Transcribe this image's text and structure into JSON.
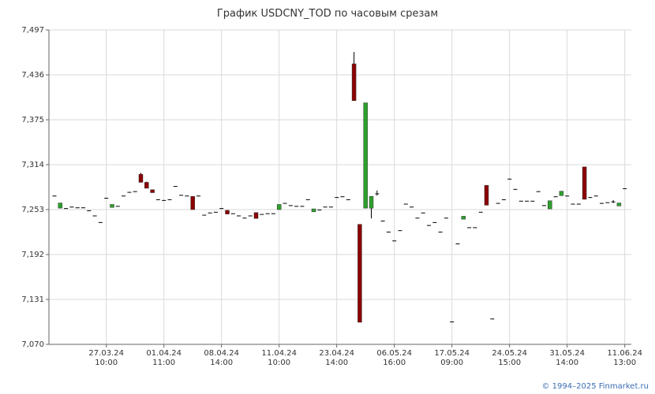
{
  "chart_data": {
    "type": "candlestick",
    "title": "График USDCNY_TOD по часовым срезам",
    "footer": "© 1994–2025 Finmarket.ru",
    "up_color": "#2ca02c",
    "down_color": "#8b0000",
    "flat_color": "#000000",
    "grid": true,
    "ylim": [
      7.07,
      7.497
    ],
    "yticks": [
      {
        "value": 7.07,
        "label": "7,070"
      },
      {
        "value": 7.131,
        "label": "7,131"
      },
      {
        "value": 7.192,
        "label": "7,192"
      },
      {
        "value": 7.253,
        "label": "7,253"
      },
      {
        "value": 7.314,
        "label": "7,314"
      },
      {
        "value": 7.375,
        "label": "7,375"
      },
      {
        "value": 7.436,
        "label": "7,436"
      },
      {
        "value": 7.497,
        "label": "7,497"
      }
    ],
    "categories": [
      null,
      null,
      null,
      null,
      null,
      null,
      null,
      null,
      null,
      "27.03.24\n10:00",
      null,
      null,
      null,
      null,
      null,
      null,
      null,
      null,
      null,
      "01.04.24\n11:00",
      null,
      null,
      null,
      null,
      null,
      null,
      null,
      null,
      null,
      "08.04.24\n14:00",
      null,
      null,
      null,
      null,
      null,
      null,
      null,
      null,
      null,
      "11.04.24\n10:00",
      null,
      null,
      null,
      null,
      null,
      null,
      null,
      null,
      null,
      "23.04.24\n14:00",
      null,
      null,
      null,
      null,
      null,
      null,
      null,
      null,
      null,
      "06.05.24\n16:00",
      null,
      null,
      null,
      null,
      null,
      null,
      null,
      null,
      null,
      "17.05.24\n09:00",
      null,
      null,
      null,
      null,
      null,
      null,
      null,
      null,
      null,
      "24.05.24\n15:00",
      null,
      null,
      null,
      null,
      null,
      null,
      null,
      null,
      null,
      "31.05.24\n14:00",
      null,
      null,
      null,
      null,
      null,
      null,
      null,
      null,
      null,
      "11.06.24\n13:00"
    ],
    "open": [
      7.272,
      7.255,
      7.255,
      7.257,
      7.256,
      7.256,
      7.252,
      7.245,
      7.236,
      7.269,
      7.256,
      7.258,
      7.272,
      7.277,
      7.278,
      7.301,
      7.29,
      7.28,
      7.267,
      7.266,
      7.267,
      7.285,
      7.273,
      7.272,
      7.271,
      7.272,
      7.246,
      7.249,
      7.25,
      7.255,
      7.252,
      7.248,
      7.245,
      7.242,
      7.245,
      7.249,
      7.247,
      7.248,
      7.248,
      7.253,
      7.262,
      7.259,
      7.258,
      7.258,
      7.267,
      7.25,
      7.253,
      7.257,
      7.257,
      7.27,
      7.271,
      7.267,
      7.451,
      7.233,
      7.255,
      7.255,
      7.275,
      7.238,
      7.223,
      7.211,
      7.225,
      7.261,
      7.257,
      7.242,
      7.249,
      7.232,
      7.236,
      7.223,
      7.242,
      7.101,
      7.207,
      7.24,
      7.229,
      7.229,
      7.25,
      7.286,
      7.105,
      7.262,
      7.267,
      7.295,
      7.281,
      7.265,
      7.265,
      7.265,
      7.278,
      7.259,
      7.254,
      7.271,
      7.272,
      7.272,
      7.261,
      7.261,
      7.311,
      7.27,
      7.272,
      7.262,
      7.263,
      7.264,
      7.258,
      7.282
    ],
    "high": [
      7.272,
      7.262,
      7.255,
      7.257,
      7.256,
      7.256,
      7.252,
      7.245,
      7.236,
      7.269,
      7.26,
      7.258,
      7.272,
      7.277,
      7.278,
      7.303,
      7.291,
      7.28,
      7.267,
      7.266,
      7.267,
      7.285,
      7.273,
      7.272,
      7.271,
      7.272,
      7.246,
      7.249,
      7.25,
      7.255,
      7.252,
      7.248,
      7.245,
      7.242,
      7.245,
      7.249,
      7.247,
      7.248,
      7.248,
      7.26,
      7.262,
      7.259,
      7.258,
      7.258,
      7.267,
      7.254,
      7.253,
      7.257,
      7.257,
      7.27,
      7.271,
      7.267,
      7.467,
      7.233,
      7.398,
      7.271,
      7.279,
      7.238,
      7.223,
      7.211,
      7.225,
      7.261,
      7.257,
      7.242,
      7.249,
      7.232,
      7.236,
      7.223,
      7.242,
      7.101,
      7.207,
      7.244,
      7.229,
      7.229,
      7.25,
      7.286,
      7.105,
      7.262,
      7.267,
      7.295,
      7.281,
      7.265,
      7.265,
      7.265,
      7.278,
      7.259,
      7.265,
      7.271,
      7.278,
      7.272,
      7.261,
      7.261,
      7.311,
      7.27,
      7.272,
      7.262,
      7.263,
      7.266,
      7.262,
      7.282
    ],
    "low": [
      7.272,
      7.255,
      7.255,
      7.257,
      7.256,
      7.256,
      7.252,
      7.245,
      7.236,
      7.269,
      7.256,
      7.258,
      7.272,
      7.277,
      7.278,
      7.29,
      7.282,
      7.276,
      7.267,
      7.266,
      7.267,
      7.285,
      7.273,
      7.272,
      7.253,
      7.272,
      7.246,
      7.249,
      7.25,
      7.255,
      7.247,
      7.248,
      7.245,
      7.242,
      7.245,
      7.241,
      7.247,
      7.248,
      7.248,
      7.253,
      7.262,
      7.259,
      7.258,
      7.258,
      7.267,
      7.25,
      7.253,
      7.257,
      7.257,
      7.27,
      7.271,
      7.267,
      7.401,
      7.1,
      7.255,
      7.241,
      7.272,
      7.238,
      7.223,
      7.211,
      7.225,
      7.261,
      7.257,
      7.242,
      7.249,
      7.232,
      7.236,
      7.223,
      7.242,
      7.101,
      7.207,
      7.24,
      7.229,
      7.229,
      7.25,
      7.259,
      7.105,
      7.262,
      7.267,
      7.295,
      7.281,
      7.265,
      7.265,
      7.265,
      7.278,
      7.259,
      7.254,
      7.271,
      7.272,
      7.272,
      7.261,
      7.261,
      7.267,
      7.27,
      7.272,
      7.262,
      7.263,
      7.262,
      7.258,
      7.282
    ],
    "close": [
      7.272,
      7.262,
      7.255,
      7.257,
      7.256,
      7.256,
      7.252,
      7.245,
      7.236,
      7.269,
      7.26,
      7.258,
      7.272,
      7.277,
      7.278,
      7.29,
      7.282,
      7.276,
      7.267,
      7.266,
      7.267,
      7.285,
      7.273,
      7.272,
      7.253,
      7.272,
      7.246,
      7.249,
      7.25,
      7.255,
      7.247,
      7.248,
      7.245,
      7.242,
      7.245,
      7.241,
      7.247,
      7.248,
      7.248,
      7.26,
      7.262,
      7.259,
      7.258,
      7.258,
      7.267,
      7.254,
      7.253,
      7.257,
      7.257,
      7.27,
      7.271,
      7.267,
      7.401,
      7.1,
      7.398,
      7.271,
      7.275,
      7.238,
      7.223,
      7.211,
      7.225,
      7.261,
      7.257,
      7.242,
      7.249,
      7.232,
      7.236,
      7.223,
      7.242,
      7.101,
      7.207,
      7.244,
      7.229,
      7.229,
      7.25,
      7.259,
      7.105,
      7.262,
      7.267,
      7.295,
      7.281,
      7.265,
      7.265,
      7.265,
      7.278,
      7.259,
      7.265,
      7.271,
      7.278,
      7.272,
      7.261,
      7.261,
      7.267,
      7.27,
      7.272,
      7.262,
      7.263,
      7.264,
      7.262,
      7.282
    ]
  }
}
